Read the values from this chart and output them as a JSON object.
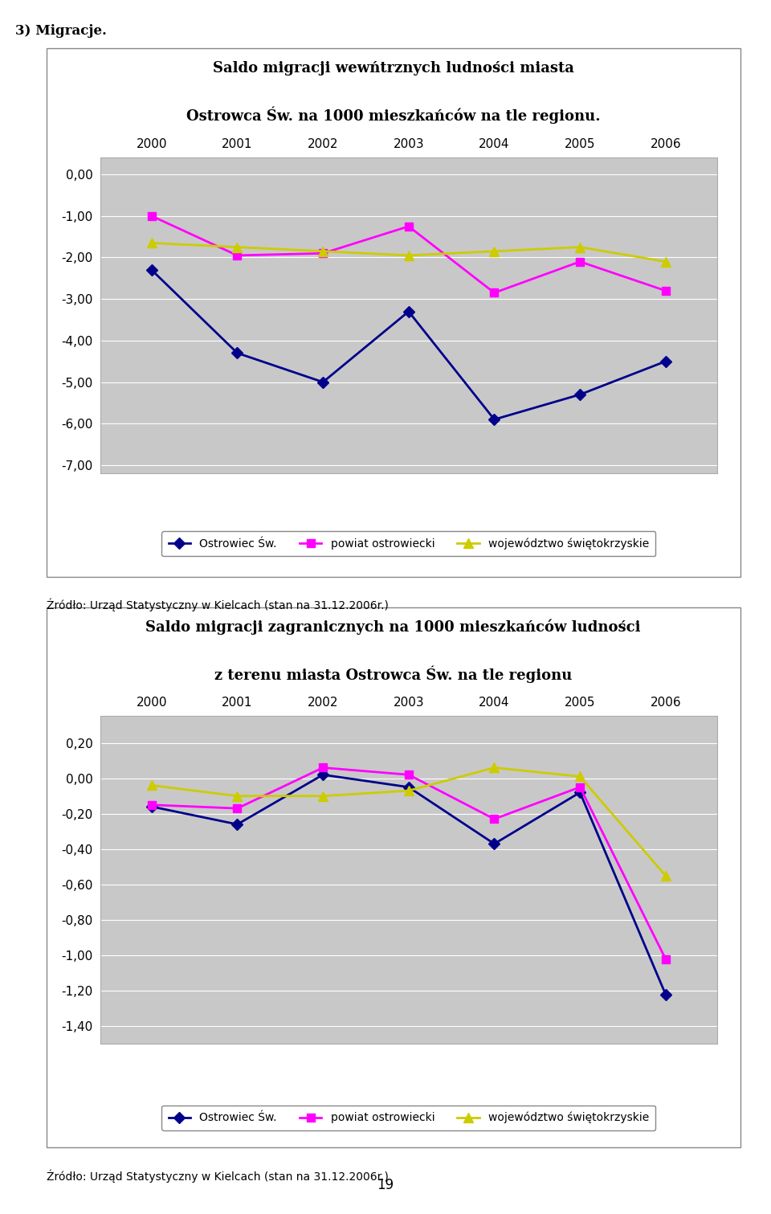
{
  "page_label": "3) Migracje.",
  "chart1": {
    "title_line1": "Saldo migracji wewńtrznych ludności miasta",
    "title_line2": "Ostrowca Św. na 1000 mieszkańców na tle regionu.",
    "years": [
      2000,
      2001,
      2002,
      2003,
      2004,
      2005,
      2006
    ],
    "ostrowiec": [
      -2.3,
      -4.3,
      -5.0,
      -3.3,
      -5.9,
      -5.3,
      -4.5
    ],
    "powiat": [
      -1.0,
      -1.95,
      -1.9,
      -1.25,
      -2.85,
      -2.1,
      -2.8
    ],
    "wojewodztwo": [
      -1.65,
      -1.75,
      -1.85,
      -1.95,
      -1.85,
      -1.75,
      -2.1
    ],
    "ylim": [
      -7.2,
      0.4
    ],
    "yticks": [
      0.0,
      -1.0,
      -2.0,
      -3.0,
      -4.0,
      -5.0,
      -6.0,
      -7.0
    ],
    "source": "Źródło: Urząd Statystyczny w Kielcach (stan na 31.12.2006r.)"
  },
  "chart2": {
    "title_line1": "Saldo migracji zagranicznych na 1000 mieszkańców ludności",
    "title_line2": "z terenu miasta Ostrowca Św. na tle regionu",
    "years": [
      2000,
      2001,
      2002,
      2003,
      2004,
      2005,
      2006
    ],
    "ostrowiec": [
      -0.16,
      -0.26,
      0.02,
      -0.05,
      -0.37,
      -0.08,
      -1.22
    ],
    "powiat": [
      -0.15,
      -0.17,
      0.06,
      0.02,
      -0.23,
      -0.05,
      -1.02
    ],
    "wojewodztwo": [
      -0.04,
      -0.1,
      -0.1,
      -0.07,
      0.06,
      0.01,
      -0.55
    ],
    "ylim": [
      -1.5,
      0.35
    ],
    "yticks": [
      0.2,
      0.0,
      -0.2,
      -0.4,
      -0.6,
      -0.8,
      -1.0,
      -1.2,
      -1.4
    ],
    "source": "Źródło: Urząd Statystyczny w Kielcach (stan na 31.12.2006r.)"
  },
  "colors": {
    "ostrowiec": "#00008B",
    "powiat": "#FF00FF",
    "wojewodztwo": "#CCCC00"
  },
  "legend_labels": [
    "Ostrowiec Św.",
    "powiat ostrowiecki",
    "województwo świętokrzyskie"
  ],
  "plot_bg": "#C8C8C8",
  "page_number": "19"
}
